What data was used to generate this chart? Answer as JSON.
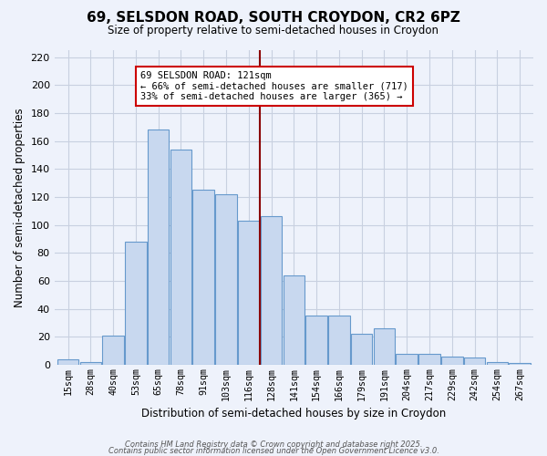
{
  "title": "69, SELSDON ROAD, SOUTH CROYDON, CR2 6PZ",
  "subtitle": "Size of property relative to semi-detached houses in Croydon",
  "xlabel": "Distribution of semi-detached houses by size in Croydon",
  "ylabel": "Number of semi-detached properties",
  "bins": [
    "15sqm",
    "28sqm",
    "40sqm",
    "53sqm",
    "65sqm",
    "78sqm",
    "91sqm",
    "103sqm",
    "116sqm",
    "128sqm",
    "141sqm",
    "154sqm",
    "166sqm",
    "179sqm",
    "191sqm",
    "204sqm",
    "217sqm",
    "229sqm",
    "242sqm",
    "254sqm",
    "267sqm"
  ],
  "values": [
    4,
    2,
    21,
    88,
    168,
    154,
    125,
    122,
    103,
    106,
    64,
    35,
    35,
    22,
    26,
    8,
    8,
    6,
    5,
    2,
    1
  ],
  "bar_color": "#c8d8ef",
  "bar_edge_color": "#6699cc",
  "vline_x": 8.5,
  "vline_color": "#8b0000",
  "annotation_title": "69 SELSDON ROAD: 121sqm",
  "annotation_line1": "← 66% of semi-detached houses are smaller (717)",
  "annotation_line2": "33% of semi-detached houses are larger (365) →",
  "annotation_box_color": "white",
  "annotation_box_edge": "#cc0000",
  "ylim": [
    0,
    225
  ],
  "yticks": [
    0,
    20,
    40,
    60,
    80,
    100,
    120,
    140,
    160,
    180,
    200,
    220
  ],
  "footer1": "Contains HM Land Registry data © Crown copyright and database right 2025.",
  "footer2": "Contains public sector information licensed under the Open Government Licence v3.0.",
  "bg_color": "#eef2fb",
  "grid_color": "#c8d0e0"
}
